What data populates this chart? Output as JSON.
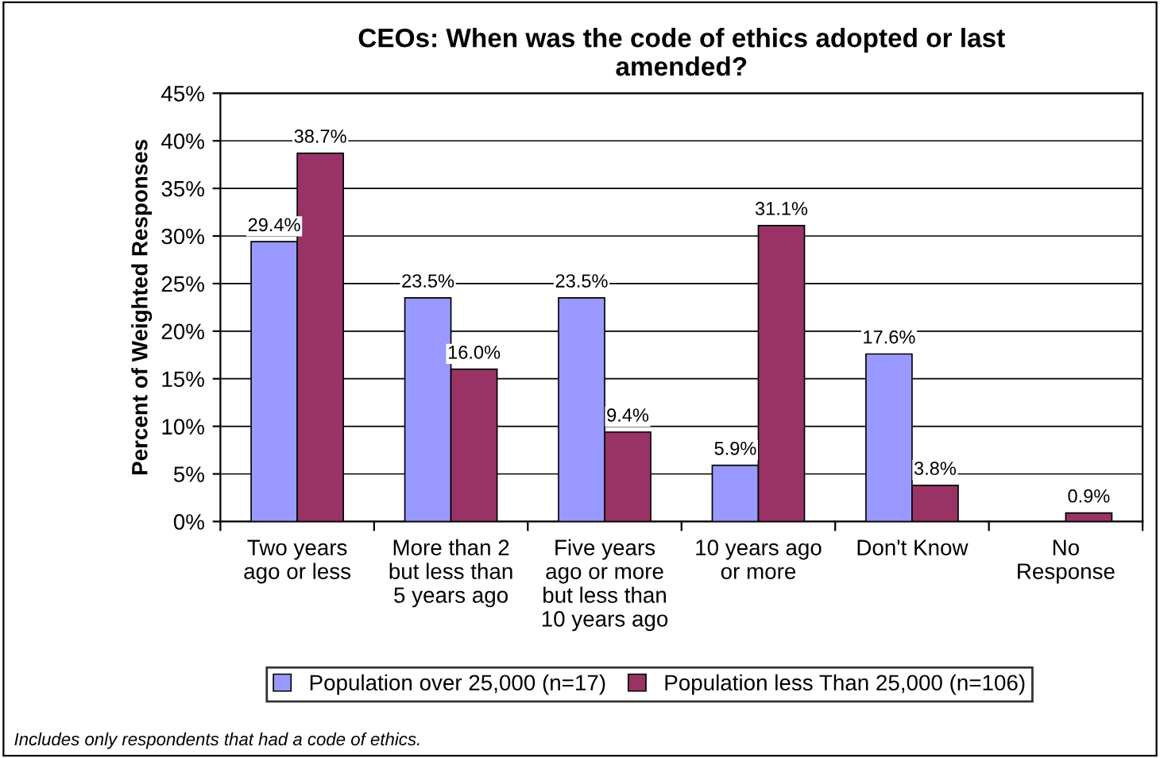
{
  "chart_data": {
    "type": "bar",
    "title": "CEOs: When was the code of ethics adopted or last\namended?",
    "ylabel": "Percent of Weighted Responses",
    "categories": [
      "Two years\nago or less",
      "More than 2\nbut less than\n5 years ago",
      "Five years\nago or more\nbut less than\n10 years ago",
      "10 years ago\nor more",
      "Don't Know",
      "No\nResponse"
    ],
    "series": [
      {
        "name": "Population over 25,000 (n=17)",
        "color": "#9999ff",
        "values": [
          29.4,
          23.5,
          23.5,
          5.9,
          17.6,
          null
        ],
        "value_labels": [
          "29.4%",
          "23.5%",
          "23.5%",
          "5.9%",
          "17.6%",
          null
        ]
      },
      {
        "name": "Population less Than 25,000 (n=106)",
        "color": "#993366",
        "values": [
          38.7,
          16.0,
          9.4,
          31.1,
          3.8,
          0.9
        ],
        "value_labels": [
          "38.7%",
          "16.0%",
          "9.4%",
          "31.1%",
          "3.8%",
          "0.9%"
        ]
      }
    ],
    "ylim": [
      0,
      45
    ],
    "yticks": [
      {
        "value": 0,
        "label": "0%"
      },
      {
        "value": 5,
        "label": "5%"
      },
      {
        "value": 10,
        "label": "10%"
      },
      {
        "value": 15,
        "label": "15%"
      },
      {
        "value": 20,
        "label": "20%"
      },
      {
        "value": 25,
        "label": "25%"
      },
      {
        "value": 30,
        "label": "30%"
      },
      {
        "value": 35,
        "label": "35%"
      },
      {
        "value": 40,
        "label": "40%"
      },
      {
        "value": 45,
        "label": "45%"
      }
    ],
    "grid": "y",
    "legend": "bottom",
    "annotations": [
      "Includes only respondents that had a code of ethics."
    ]
  }
}
